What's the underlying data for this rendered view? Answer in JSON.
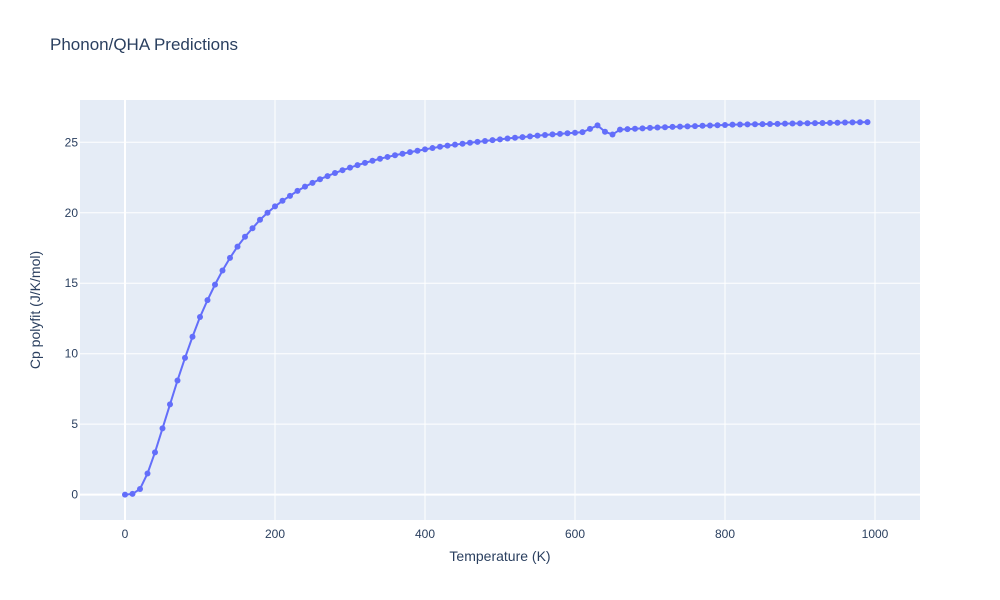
{
  "chart_data": {
    "type": "line",
    "title": "Phonon/QHA Predictions",
    "xlabel": "Temperature (K)",
    "ylabel": "Cp polyfit (J/K/mol)",
    "xlim": [
      -60,
      1060
    ],
    "ylim": [
      -1.8,
      28.0
    ],
    "x_ticks": [
      0,
      200,
      400,
      600,
      800,
      1000
    ],
    "y_ticks": [
      0,
      5,
      10,
      15,
      20,
      25
    ],
    "grid": true,
    "colors": {
      "line": "#636efa",
      "plot_bg": "#e5ecf6",
      "grid": "#ffffff",
      "text": "#2a3f5f"
    },
    "series": [
      {
        "mode": "lines+markers",
        "x": [
          0,
          10,
          20,
          30,
          40,
          50,
          60,
          70,
          80,
          90,
          100,
          110,
          120,
          130,
          140,
          150,
          160,
          170,
          180,
          190,
          200,
          210,
          220,
          230,
          240,
          250,
          260,
          270,
          280,
          290,
          300,
          310,
          320,
          330,
          340,
          350,
          360,
          370,
          380,
          390,
          400,
          410,
          420,
          430,
          440,
          450,
          460,
          470,
          480,
          490,
          500,
          510,
          520,
          530,
          540,
          550,
          560,
          570,
          580,
          590,
          600,
          610,
          620,
          630,
          640,
          650,
          660,
          670,
          680,
          690,
          700,
          710,
          720,
          730,
          740,
          750,
          760,
          770,
          780,
          790,
          800,
          810,
          820,
          830,
          840,
          850,
          860,
          870,
          880,
          890,
          900,
          910,
          920,
          930,
          940,
          950,
          960,
          970,
          980,
          990
        ],
        "y": [
          0.0,
          0.05,
          0.4,
          1.5,
          3.0,
          4.7,
          6.4,
          8.1,
          9.7,
          11.2,
          12.6,
          13.8,
          14.9,
          15.9,
          16.8,
          17.6,
          18.3,
          18.9,
          19.5,
          20.0,
          20.45,
          20.85,
          21.2,
          21.55,
          21.85,
          22.12,
          22.38,
          22.6,
          22.82,
          23.02,
          23.2,
          23.38,
          23.54,
          23.69,
          23.83,
          23.96,
          24.08,
          24.19,
          24.3,
          24.4,
          24.5,
          24.59,
          24.68,
          24.76,
          24.83,
          24.9,
          24.97,
          25.03,
          25.09,
          25.15,
          25.21,
          25.27,
          25.32,
          25.37,
          25.42,
          25.47,
          25.52,
          25.56,
          25.6,
          25.64,
          25.68,
          25.72,
          25.95,
          26.2,
          25.75,
          25.55,
          25.9,
          25.93,
          25.96,
          25.99,
          26.02,
          26.05,
          26.07,
          26.09,
          26.11,
          26.13,
          26.15,
          26.17,
          26.19,
          26.21,
          26.23,
          26.25,
          26.26,
          26.27,
          26.28,
          26.29,
          26.3,
          26.31,
          26.32,
          26.33,
          26.34,
          26.35,
          26.36,
          26.37,
          26.38,
          26.39,
          26.4,
          26.41,
          26.42,
          26.43
        ]
      }
    ]
  }
}
